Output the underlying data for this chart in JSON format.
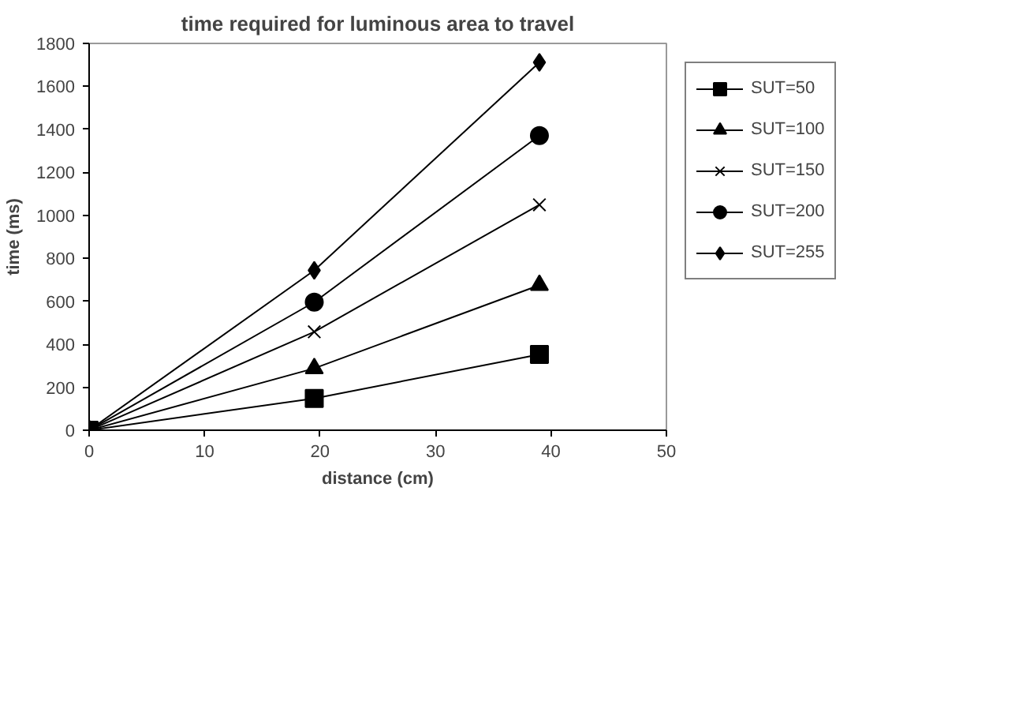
{
  "chart_data": {
    "type": "line",
    "title": "time required for luminous area to travel",
    "xlabel": "distance (cm)",
    "ylabel": "time (ms)",
    "x": [
      0,
      19.5,
      39
    ],
    "series": [
      {
        "name": "SUT=50",
        "color": "#000000",
        "marker": "square",
        "values": [
          0,
          148,
          353
        ]
      },
      {
        "name": "SUT=100",
        "color": "#000000",
        "marker": "triangle",
        "values": [
          0,
          288,
          675
        ]
      },
      {
        "name": "SUT=150",
        "color": "#000000",
        "marker": "cross",
        "values": [
          0,
          458,
          1049
        ]
      },
      {
        "name": "SUT=200",
        "color": "#000000",
        "marker": "circle",
        "values": [
          0,
          596,
          1371
        ]
      },
      {
        "name": "SUT=255",
        "color": "#000000",
        "marker": "diamond",
        "values": [
          0,
          744,
          1712
        ]
      }
    ],
    "xlim": [
      0,
      50
    ],
    "xticks": [
      0,
      10,
      20,
      30,
      40,
      50
    ],
    "ylim": [
      0,
      1800
    ],
    "yticks": [
      0,
      200,
      400,
      600,
      800,
      1000,
      1200,
      1400,
      1600,
      1800
    ],
    "grid": false,
    "legend": "right",
    "line_style": "solid"
  }
}
